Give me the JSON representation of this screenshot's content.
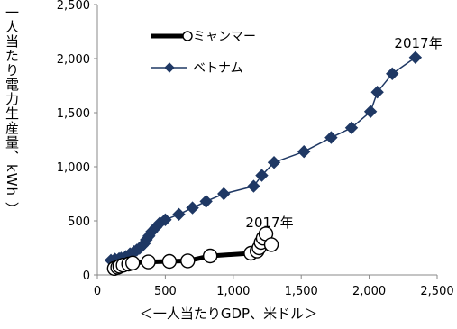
{
  "chart_data": {
    "type": "scatter",
    "xlabel": "＜一人当たりGDP、米ドル＞",
    "ylabel": "一人当たり電力生産量、kWh ）",
    "xlim": [
      0,
      2500
    ],
    "ylim": [
      0,
      2500
    ],
    "xticks": [
      0,
      500,
      1000,
      1500,
      2000,
      2500
    ],
    "yticks": [
      0,
      500,
      1000,
      1500,
      2000,
      2500
    ],
    "xtick_labels": [
      "0",
      "500",
      "1,000",
      "1,500",
      "2,000",
      "2,500"
    ],
    "ytick_labels": [
      "0",
      "500",
      "1,000",
      "1,500",
      "2,000",
      "2,500"
    ],
    "grid": false,
    "legend_position": "top-left",
    "series": [
      {
        "name": "ミャンマー",
        "color": "#000000",
        "marker": "circle-open",
        "points": [
          [
            125,
            60
          ],
          [
            150,
            70
          ],
          [
            165,
            80
          ],
          [
            190,
            90
          ],
          [
            230,
            100
          ],
          [
            260,
            110
          ],
          [
            375,
            120
          ],
          [
            530,
            125
          ],
          [
            665,
            130
          ],
          [
            830,
            175
          ],
          [
            1130,
            200
          ],
          [
            1175,
            220
          ],
          [
            1190,
            250
          ],
          [
            1205,
            300
          ],
          [
            1220,
            340
          ],
          [
            1240,
            380
          ],
          [
            1280,
            280
          ]
        ]
      },
      {
        "name": "ベトナム",
        "color": "#1f3864",
        "marker": "diamond",
        "points": [
          [
            100,
            135
          ],
          [
            130,
            145
          ],
          [
            160,
            150
          ],
          [
            175,
            155
          ],
          [
            210,
            170
          ],
          [
            240,
            195
          ],
          [
            270,
            215
          ],
          [
            290,
            230
          ],
          [
            310,
            245
          ],
          [
            330,
            270
          ],
          [
            345,
            290
          ],
          [
            360,
            325
          ],
          [
            380,
            360
          ],
          [
            400,
            400
          ],
          [
            430,
            440
          ],
          [
            460,
            480
          ],
          [
            500,
            510
          ],
          [
            600,
            560
          ],
          [
            700,
            620
          ],
          [
            800,
            680
          ],
          [
            930,
            750
          ],
          [
            1150,
            820
          ],
          [
            1210,
            920
          ],
          [
            1300,
            1040
          ],
          [
            1520,
            1140
          ],
          [
            1720,
            1270
          ],
          [
            1870,
            1360
          ],
          [
            2010,
            1510
          ],
          [
            2060,
            1690
          ],
          [
            2170,
            1860
          ],
          [
            2340,
            2010
          ]
        ]
      }
    ],
    "annotations": [
      {
        "text": "2017年",
        "series": "ベトナム"
      },
      {
        "text": "2017年",
        "series": "ミャンマー"
      }
    ]
  }
}
